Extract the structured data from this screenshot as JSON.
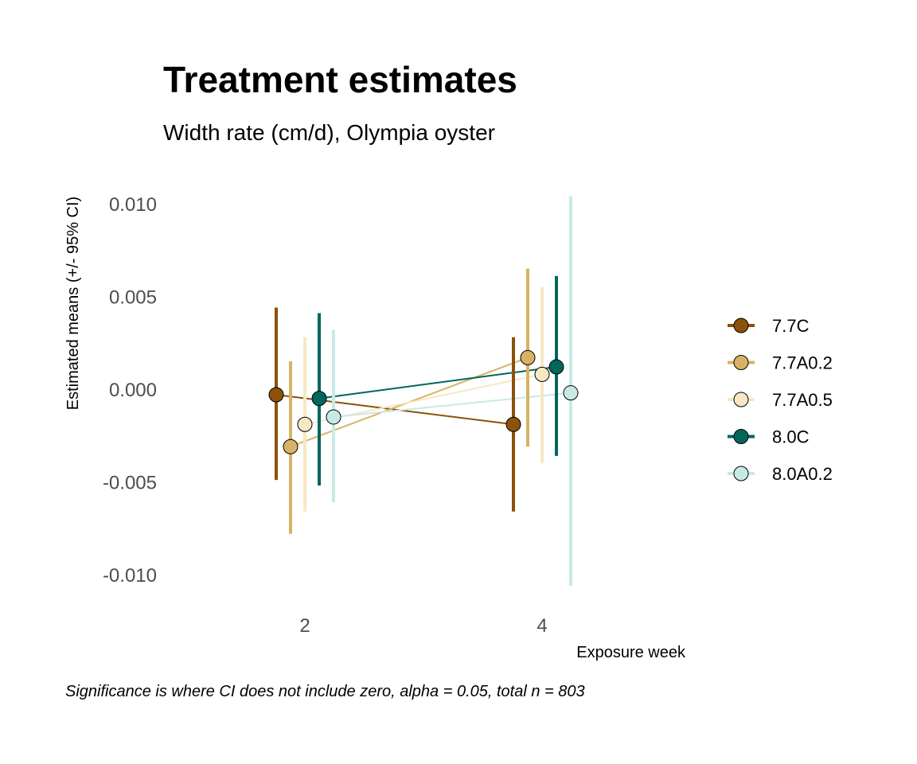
{
  "chart_data": {
    "type": "line",
    "title": "Treatment estimates",
    "subtitle": "Width rate (cm/d), Olympia oyster",
    "xlabel": "Exposure week",
    "ylabel": "Estimated means (+/- 95% CI)",
    "caption": "Significance is where CI does not include zero, alpha = 0.05, total n = 803",
    "x_categories": [
      "2",
      "4"
    ],
    "y_ticks": [
      "0.010",
      "0.005",
      "0.000",
      "-0.005",
      "-0.010"
    ],
    "y_tick_values": [
      0.01,
      0.005,
      0.0,
      -0.005,
      -0.01
    ],
    "ylim": [
      -0.0118,
      0.0118
    ],
    "grid": false,
    "legend_position": "right",
    "series": [
      {
        "name": "7.7C",
        "color": "#8c510a",
        "mean": [
          -0.0003,
          -0.0019
        ],
        "lower": [
          -0.0049,
          -0.0066
        ],
        "upper": [
          0.0044,
          0.0028
        ]
      },
      {
        "name": "7.7A0.2",
        "color": "#d8b365",
        "mean": [
          -0.0031,
          0.0017
        ],
        "lower": [
          -0.0078,
          -0.0031
        ],
        "upper": [
          0.0015,
          0.0065
        ]
      },
      {
        "name": "7.7A0.5",
        "color": "#f6e8c3",
        "mean": [
          -0.0019,
          0.0008
        ],
        "lower": [
          -0.0066,
          -0.004
        ],
        "upper": [
          0.0028,
          0.0055
        ]
      },
      {
        "name": "8.0C",
        "color": "#01665e",
        "mean": [
          -0.0005,
          0.0012
        ],
        "lower": [
          -0.0052,
          -0.0036
        ],
        "upper": [
          0.0041,
          0.0061
        ]
      },
      {
        "name": "8.0A0.2",
        "color": "#c7eae5",
        "mean": [
          -0.0015,
          -0.0002
        ],
        "lower": [
          -0.0061,
          -0.0106
        ],
        "upper": [
          0.0032,
          0.0104
        ]
      }
    ]
  }
}
